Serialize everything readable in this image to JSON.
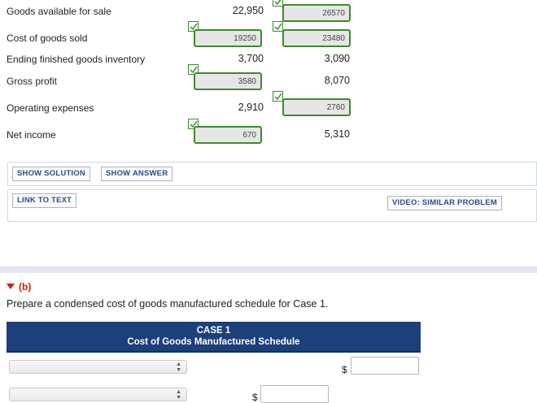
{
  "rows": [
    {
      "label": "Goods available for sale",
      "case1": "22,950",
      "case2": "26570"
    },
    {
      "label": "Cost of goods sold",
      "case1": "19250",
      "case2": "23480"
    },
    {
      "label": "Ending finished goods inventory",
      "case1": "3,700",
      "case2": "3,090"
    },
    {
      "label": "Gross profit",
      "case1": "3580",
      "case2": "8,070"
    },
    {
      "label": "Operating expenses",
      "case1": "2,910",
      "case2": "2760"
    },
    {
      "label": "Net income",
      "case1": "670",
      "case2": "5,310"
    }
  ],
  "buttons": {
    "show_solution": "SHOW SOLUTION",
    "show_answer": "SHOW ANSWER",
    "link_to_text": "LINK TO TEXT",
    "video_similar": "VIDEO: SIMILAR PROBLEM"
  },
  "part_b": {
    "label": "(b)",
    "instructions": "Prepare a condensed cost of goods manufactured schedule for Case 1.",
    "table_title": "CASE 1",
    "table_subtitle": "Cost of Goods Manufactured Schedule",
    "currency": "$",
    "dropdown_arrow_up": "▲",
    "dropdown_arrow_down": "▼"
  },
  "colors": {
    "correct_border": "#3d8b2a",
    "header_bg": "#1d3f7a",
    "button_text": "#2a4e8c",
    "part_head": "#cc2200"
  }
}
